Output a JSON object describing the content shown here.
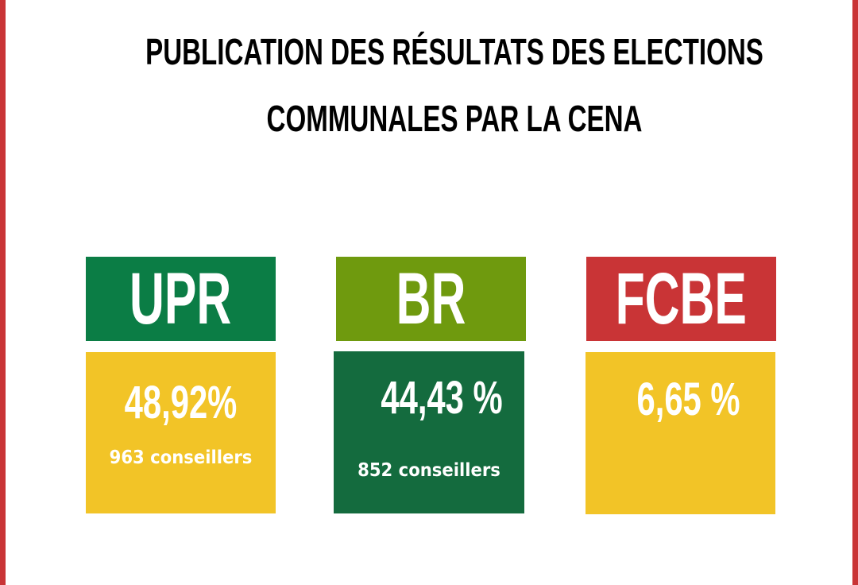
{
  "title": {
    "line1": "PUBLICATION DES RÉSULTATS DES ELECTIONS",
    "line2": "COMMUNALES PAR LA CENA"
  },
  "colors": {
    "border": "#c93436",
    "upr": "#0b7d45",
    "br": "#6f9a0e",
    "fcbe": "#c93436",
    "yellow": "#f2c427",
    "dark_green": "#146b3e"
  },
  "parties": [
    {
      "name": "UPR",
      "percent": "48,92%",
      "seats": "963 conseillers"
    },
    {
      "name": "BR",
      "percent": "44,43 %",
      "seats": "852 conseillers"
    },
    {
      "name": "FCBE",
      "percent": "6,65 %"
    }
  ]
}
